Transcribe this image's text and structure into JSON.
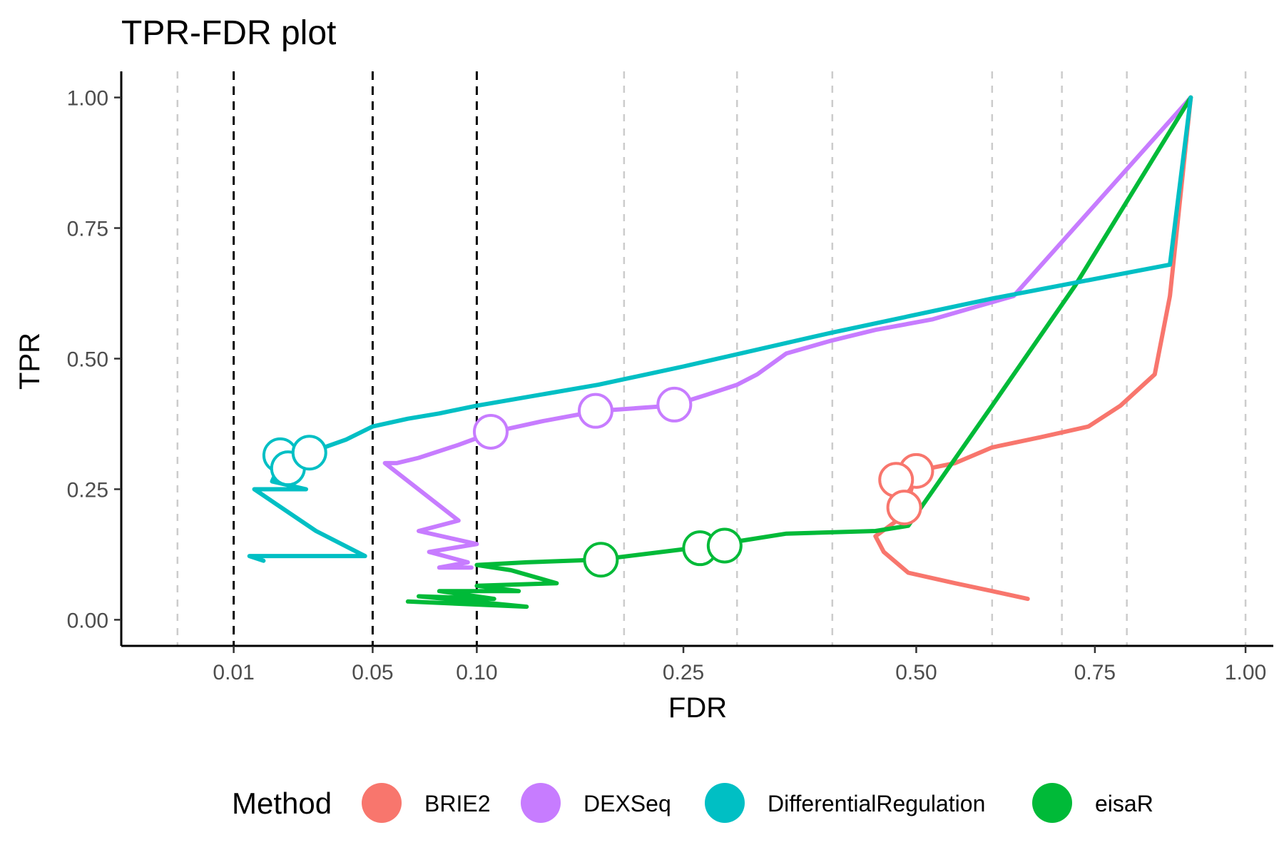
{
  "chart_data": {
    "type": "line",
    "title": "TPR-FDR plot",
    "xlabel": "FDR",
    "ylabel": "TPR",
    "x_scale": "sqrt",
    "xlim": [
      0,
      1.05
    ],
    "ylim": [
      -0.05,
      1.05
    ],
    "x_ticks": [
      {
        "value": 0.01,
        "label": "0.01"
      },
      {
        "value": 0.05,
        "label": "0.05"
      },
      {
        "value": 0.1,
        "label": "0.10"
      },
      {
        "value": 0.25,
        "label": "0.25"
      },
      {
        "value": 0.5,
        "label": "0.50"
      },
      {
        "value": 0.75,
        "label": "0.75"
      },
      {
        "value": 1.0,
        "label": "1.00"
      }
    ],
    "y_ticks": [
      {
        "value": 0.0,
        "label": "0.00"
      },
      {
        "value": 0.25,
        "label": "0.25"
      },
      {
        "value": 0.5,
        "label": "0.50"
      },
      {
        "value": 0.75,
        "label": "0.75"
      },
      {
        "value": 1.0,
        "label": "1.00"
      }
    ],
    "threshold_lines": [
      0.01,
      0.05,
      0.1
    ],
    "grid_x_values": [
      0.0025,
      0.2,
      0.3,
      0.4,
      0.6,
      0.7,
      0.8,
      1.0
    ],
    "legend": {
      "title": "Method",
      "position": "bottom"
    },
    "series": [
      {
        "name": "BRIE2",
        "color": "#F8766D",
        "points": [
          [
            0.905,
            1.0
          ],
          [
            0.87,
            0.62
          ],
          [
            0.845,
            0.47
          ],
          [
            0.79,
            0.41
          ],
          [
            0.74,
            0.37
          ],
          [
            0.67,
            0.35
          ],
          [
            0.6,
            0.33
          ],
          [
            0.55,
            0.3
          ],
          [
            0.5,
            0.285
          ],
          [
            0.485,
            0.2
          ],
          [
            0.45,
            0.16
          ],
          [
            0.46,
            0.13
          ],
          [
            0.49,
            0.09
          ],
          [
            0.55,
            0.07
          ],
          [
            0.6,
            0.055
          ],
          [
            0.65,
            0.04
          ]
        ],
        "markers": [
          [
            0.5,
            0.285
          ],
          [
            0.475,
            0.268
          ],
          [
            0.485,
            0.215
          ]
        ]
      },
      {
        "name": "DEXSeq",
        "color": "#C77CFF",
        "points": [
          [
            0.905,
            1.0
          ],
          [
            0.63,
            0.62
          ],
          [
            0.58,
            0.6
          ],
          [
            0.52,
            0.575
          ],
          [
            0.45,
            0.555
          ],
          [
            0.4,
            0.535
          ],
          [
            0.35,
            0.51
          ],
          [
            0.32,
            0.47
          ],
          [
            0.3,
            0.45
          ],
          [
            0.27,
            0.43
          ],
          [
            0.24,
            0.41
          ],
          [
            0.18,
            0.4
          ],
          [
            0.14,
            0.38
          ],
          [
            0.11,
            0.36
          ],
          [
            0.09,
            0.335
          ],
          [
            0.07,
            0.31
          ],
          [
            0.06,
            0.3
          ],
          [
            0.055,
            0.3
          ],
          [
            0.09,
            0.19
          ],
          [
            0.07,
            0.17
          ],
          [
            0.1,
            0.145
          ],
          [
            0.075,
            0.13
          ],
          [
            0.095,
            0.11
          ],
          [
            0.08,
            0.1
          ],
          [
            0.097,
            0.1
          ]
        ],
        "markers": [
          [
            0.108,
            0.36
          ],
          [
            0.178,
            0.4
          ],
          [
            0.242,
            0.412
          ]
        ]
      },
      {
        "name": "DifferentialRegulation",
        "color": "#00BFC4",
        "points": [
          [
            0.905,
            1.0
          ],
          [
            0.87,
            0.68
          ],
          [
            0.6,
            0.615
          ],
          [
            0.4,
            0.55
          ],
          [
            0.25,
            0.485
          ],
          [
            0.18,
            0.45
          ],
          [
            0.1,
            0.41
          ],
          [
            0.08,
            0.395
          ],
          [
            0.065,
            0.385
          ],
          [
            0.05,
            0.37
          ],
          [
            0.04,
            0.345
          ],
          [
            0.028,
            0.32
          ],
          [
            0.02,
            0.3
          ],
          [
            0.018,
            0.265
          ],
          [
            0.027,
            0.25
          ],
          [
            0.014,
            0.25
          ],
          [
            0.03,
            0.17
          ],
          [
            0.047,
            0.122
          ],
          [
            0.013,
            0.122
          ],
          [
            0.016,
            0.113
          ]
        ],
        "markers": [
          [
            0.02,
            0.315
          ],
          [
            0.022,
            0.29
          ],
          [
            0.028,
            0.32
          ]
        ]
      },
      {
        "name": "eisaR",
        "color": "#00BA38",
        "points": [
          [
            0.905,
            1.0
          ],
          [
            0.72,
            0.64
          ],
          [
            0.6,
            0.41
          ],
          [
            0.49,
            0.18
          ],
          [
            0.45,
            0.17
          ],
          [
            0.35,
            0.165
          ],
          [
            0.3,
            0.15
          ],
          [
            0.25,
            0.135
          ],
          [
            0.18,
            0.115
          ],
          [
            0.13,
            0.11
          ],
          [
            0.1,
            0.105
          ],
          [
            0.12,
            0.095
          ],
          [
            0.15,
            0.07
          ],
          [
            0.1,
            0.065
          ],
          [
            0.125,
            0.055
          ],
          [
            0.08,
            0.055
          ],
          [
            0.11,
            0.04
          ],
          [
            0.07,
            0.045
          ],
          [
            0.13,
            0.025
          ],
          [
            0.065,
            0.035
          ]
        ],
        "markers": [
          [
            0.182,
            0.115
          ],
          [
            0.265,
            0.137
          ],
          [
            0.288,
            0.142
          ]
        ]
      }
    ]
  }
}
